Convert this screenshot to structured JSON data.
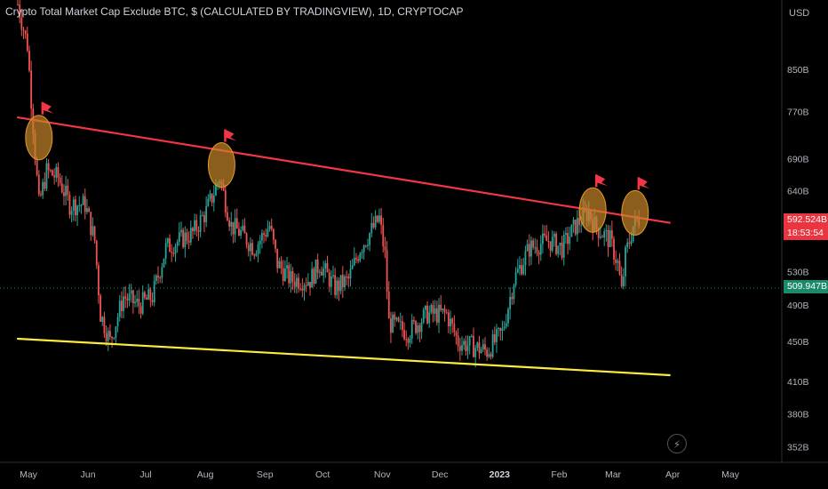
{
  "chart_data": {
    "type": "candlestick",
    "title": "Crypto Total Market Cap Exclude BTC, $ (CALCULATED BY TRADINGVIEW), 1D, CRYPTOCAP",
    "currency": "USD",
    "y_axis_scale": "log",
    "y_axis_ticks": [
      "850B",
      "770B",
      "690B",
      "640B",
      "530B",
      "490B",
      "450B",
      "410B",
      "380B",
      "352B"
    ],
    "x_axis_ticks": [
      "May",
      "Jun",
      "Jul",
      "Aug",
      "Sep",
      "Oct",
      "Nov",
      "Dec",
      "2023",
      "Feb",
      "Mar",
      "Apr",
      "May"
    ],
    "x_range": [
      "2022-05-01",
      "2023-05-31"
    ],
    "price_tags": {
      "last_price": "592.524B",
      "countdown": "18:53:54",
      "reference_price": "509.947B"
    },
    "reference_line_value": 509.947,
    "close_path": [
      [
        "2022-05-01",
        990
      ],
      [
        "2022-05-06",
        900
      ],
      [
        "2022-05-10",
        700
      ],
      [
        "2022-05-12",
        620
      ],
      [
        "2022-05-16",
        670
      ],
      [
        "2022-05-22",
        660
      ],
      [
        "2022-05-28",
        620
      ],
      [
        "2022-06-05",
        620
      ],
      [
        "2022-06-10",
        570
      ],
      [
        "2022-06-13",
        480
      ],
      [
        "2022-06-18",
        450
      ],
      [
        "2022-06-25",
        500
      ],
      [
        "2022-07-03",
        490
      ],
      [
        "2022-07-10",
        500
      ],
      [
        "2022-07-17",
        560
      ],
      [
        "2022-07-24",
        570
      ],
      [
        "2022-07-31",
        580
      ],
      [
        "2022-08-07",
        610
      ],
      [
        "2022-08-14",
        660
      ],
      [
        "2022-08-20",
        590
      ],
      [
        "2022-08-25",
        580
      ],
      [
        "2022-09-01",
        560
      ],
      [
        "2022-09-09",
        590
      ],
      [
        "2022-09-13",
        540
      ],
      [
        "2022-09-20",
        520
      ],
      [
        "2022-09-30",
        520
      ],
      [
        "2022-10-05",
        540
      ],
      [
        "2022-10-13",
        510
      ],
      [
        "2022-10-20",
        520
      ],
      [
        "2022-10-26",
        560
      ],
      [
        "2022-11-05",
        600
      ],
      [
        "2022-11-08",
        550
      ],
      [
        "2022-11-10",
        470
      ],
      [
        "2022-11-20",
        460
      ],
      [
        "2022-11-30",
        480
      ],
      [
        "2022-12-10",
        480
      ],
      [
        "2022-12-16",
        450
      ],
      [
        "2022-12-31",
        440
      ],
      [
        "2023-01-08",
        460
      ],
      [
        "2023-01-14",
        520
      ],
      [
        "2023-01-22",
        560
      ],
      [
        "2023-02-01",
        570
      ],
      [
        "2023-02-08",
        560
      ],
      [
        "2023-02-15",
        590
      ],
      [
        "2023-02-22",
        610
      ],
      [
        "2023-02-25",
        590
      ],
      [
        "2023-03-05",
        570
      ],
      [
        "2023-03-09",
        540
      ],
      [
        "2023-03-11",
        505
      ],
      [
        "2023-03-13",
        550
      ],
      [
        "2023-03-17",
        590
      ],
      [
        "2023-03-20",
        600
      ]
    ],
    "trendlines": [
      {
        "name": "resistance",
        "color": "#f23645",
        "start": [
          "2022-05-01",
          760
        ],
        "end": [
          "2023-04-05",
          594
        ]
      },
      {
        "name": "support",
        "color": "#ffeb3b",
        "start": [
          "2022-05-01",
          453
        ],
        "end": [
          "2023-04-05",
          416
        ]
      }
    ],
    "touch_markers": [
      {
        "date": "2022-05-12",
        "value": 725
      },
      {
        "date": "2022-08-15",
        "value": 680
      },
      {
        "date": "2023-02-24",
        "value": 612
      },
      {
        "date": "2023-03-18",
        "value": 608
      }
    ],
    "colors": {
      "up": "#26a69a",
      "down": "#ef5350",
      "resistance": "#f23645",
      "support": "#ffeb3b",
      "marker_fill": "#c8862a",
      "flag": "#f23645",
      "axis_text": "#b2b5be",
      "grid": "#1e222d"
    }
  },
  "controls": {
    "bolt_icon": "lightning-bolt-icon"
  }
}
